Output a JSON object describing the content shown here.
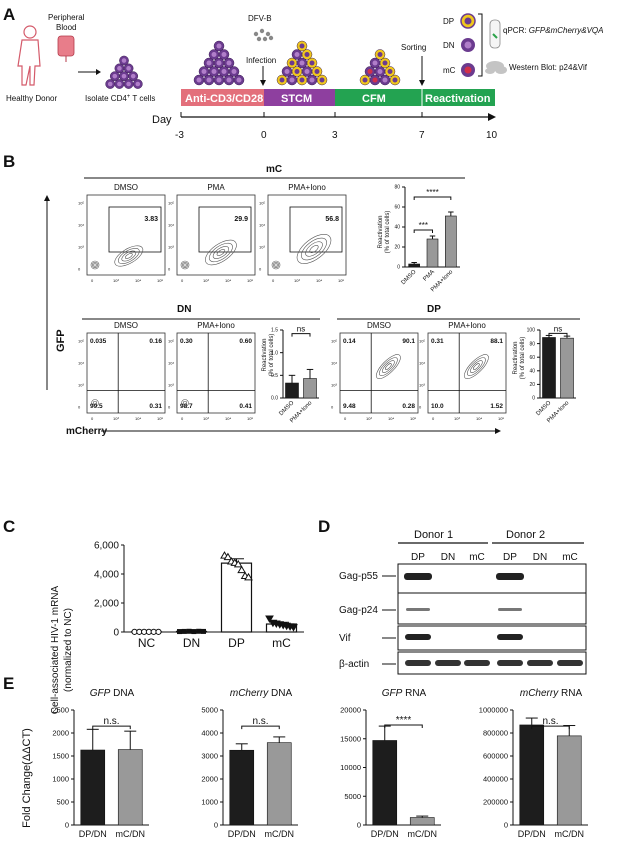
{
  "panelA": {
    "letter": "A",
    "peripheral": "Peripheral",
    "blood": "Blood",
    "donor": "Healthy Donor",
    "isolate": "Isolate CD4",
    "isolate_sup": "+",
    "isolate_tail": " T cells",
    "dfvb": "DFV-B",
    "infection": "Infection",
    "sorting": "Sorting",
    "stages": [
      {
        "label": "Anti-CD3/CD28",
        "color": "#e36f7b"
      },
      {
        "label": "STCM",
        "color": "#8e3f9f"
      },
      {
        "label": "CFM",
        "color": "#23a351"
      },
      {
        "label": "Reactivation",
        "color": "#23a351"
      }
    ],
    "day_label": "Day",
    "days": [
      "-3",
      "0",
      "3",
      "7",
      "10"
    ],
    "dp": "DP",
    "dn": "DN",
    "mc": "mC",
    "qpcr_prefix": "qPCR: ",
    "qpcr_genes": "GFP&mCherry&VQA",
    "wb": "Western Blot: p24&Vif",
    "cell_colors": {
      "purple": "#6b3b8f",
      "yellow": "#f0c81c",
      "red": "#d2304a"
    }
  },
  "panelB": {
    "letter": "B",
    "mc_title": "mC",
    "dn_title": "DN",
    "dp_title": "DP",
    "gfp": "GFP",
    "mcherry": "mCherry",
    "mc_plots": [
      {
        "label": "DMSO",
        "value": "3.83"
      },
      {
        "label": "PMA",
        "value": "29.9"
      },
      {
        "label": "PMA+Iono",
        "value": "56.8"
      }
    ],
    "dn_plots": [
      {
        "label": "DMSO",
        "q": [
          "0.035",
          "0.16",
          "99.5",
          "0.31"
        ]
      },
      {
        "label": "PMA+Iono",
        "q": [
          "0.30",
          "0.60",
          "98.7",
          "0.41"
        ]
      }
    ],
    "dp_plots": [
      {
        "label": "DMSO",
        "q": [
          "0.14",
          "90.1",
          "9.48",
          "0.28"
        ]
      },
      {
        "label": "PMA+Iono",
        "q": [
          "0.31",
          "88.1",
          "10.0",
          "1.52"
        ]
      }
    ],
    "bar_ylabel1": "Reactivation",
    "bar_ylabel2": "(% of total cells)",
    "sig3": "***",
    "sig4": "****",
    "ns": "ns",
    "ticks_mc": [
      "0",
      "20",
      "40",
      "60",
      "80"
    ],
    "ticks_dn": [
      "0.0",
      "0.5",
      "1.0",
      "1.5"
    ],
    "ticks_dp": [
      "0",
      "20",
      "40",
      "60",
      "80",
      "100"
    ],
    "contour_ticks_y": [
      "10⁵",
      "10⁴",
      "10³",
      "0"
    ],
    "contour_ticks_x": [
      "0",
      "10³",
      "10⁴",
      "10⁵"
    ],
    "bar_colors": {
      "dark": "#1d1d1d",
      "light": "#999999"
    }
  },
  "chart_data": [
    {
      "type": "bar",
      "panel": "B-mC",
      "categories": [
        "DMSO",
        "PMA",
        "PMA+Iono"
      ],
      "values": [
        3,
        28,
        51
      ],
      "errors": [
        1.5,
        3,
        4
      ],
      "ylabel": "Reactivation (% of total cells)",
      "ylim": [
        0,
        80
      ]
    },
    {
      "type": "bar",
      "panel": "B-DN",
      "categories": [
        "DMSO",
        "PMA+Iono"
      ],
      "values": [
        0.33,
        0.43
      ],
      "errors": [
        0.17,
        0.2
      ],
      "ylabel": "Reactivation (% of total cells)",
      "ylim": [
        0,
        1.5
      ]
    },
    {
      "type": "bar",
      "panel": "B-DP",
      "categories": [
        "DMSO",
        "PMA+Iono"
      ],
      "values": [
        89,
        88
      ],
      "errors": [
        3,
        3
      ],
      "ylabel": "Reactivation (% of total cells)",
      "ylim": [
        0,
        100
      ]
    },
    {
      "type": "bar",
      "panel": "C",
      "categories": [
        "NC",
        "DN",
        "DP",
        "mC"
      ],
      "values": [
        10,
        40,
        4750,
        550
      ],
      "errors": [
        5,
        15,
        300,
        120
      ],
      "ylabel": "Cell-associated HIV-1 mRNA (normalized to NC)",
      "ylim": [
        0,
        6000
      ],
      "points": [
        [
          10,
          10,
          10,
          10,
          10,
          10
        ],
        [
          30,
          40,
          50,
          30,
          50,
          40
        ],
        [
          5300,
          5200,
          4900,
          4800,
          4700,
          4300,
          3900,
          3800
        ],
        [
          900,
          600,
          550,
          500,
          450,
          400,
          350,
          300
        ]
      ]
    },
    {
      "type": "bar",
      "panel": "E-GFP DNA",
      "categories": [
        "DP/DN",
        "mC/DN"
      ],
      "values": [
        1630,
        1640
      ],
      "errors": [
        450,
        400
      ],
      "ylabel": "Fold Change(ΔΔCT)",
      "ylim": [
        0,
        2500
      ]
    },
    {
      "type": "bar",
      "panel": "E-mCherry DNA",
      "categories": [
        "DP/DN",
        "mC/DN"
      ],
      "values": [
        3250,
        3580
      ],
      "errors": [
        280,
        250
      ],
      "ylim": [
        0,
        5000
      ]
    },
    {
      "type": "bar",
      "panel": "E-GFP RNA",
      "categories": [
        "DP/DN",
        "mC/DN"
      ],
      "values": [
        14700,
        1300
      ],
      "errors": [
        2500,
        250
      ],
      "ylim": [
        0,
        20000
      ]
    },
    {
      "type": "bar",
      "panel": "E-mCherry RNA",
      "categories": [
        "DP/DN",
        "mC/DN"
      ],
      "values": [
        870000,
        775000
      ],
      "errors": [
        60000,
        90000
      ],
      "ylim": [
        0,
        1000000
      ]
    }
  ],
  "panelC": {
    "letter": "C",
    "ylabel1": "Cell-associated HIV-1 mRNA",
    "ylabel2": "(normalized to NC)",
    "yticks": [
      "0",
      "2,000",
      "4,000",
      "6,000"
    ],
    "categories": [
      "NC",
      "DN",
      "DP",
      "mC"
    ]
  },
  "panelD": {
    "letter": "D",
    "donor1": "Donor 1",
    "donor2": "Donor 2",
    "lanes": [
      "DP",
      "DN",
      "mC",
      "DP",
      "DN",
      "mC"
    ],
    "rows": [
      "Gag-p55",
      "Gag-p24",
      "Vif",
      "β-actin"
    ]
  },
  "panelE": {
    "letter": "E",
    "ylabel": "Fold Change(ΔΔCT)",
    "charts": [
      {
        "gene": "GFP",
        "kind": " DNA",
        "yticks": [
          "0",
          "500",
          "1000",
          "1500",
          "2000",
          "2500"
        ],
        "sig": "n.s."
      },
      {
        "gene": "mCherry",
        "kind": " DNA",
        "yticks": [
          "0",
          "1000",
          "2000",
          "3000",
          "4000",
          "5000"
        ],
        "sig": "n.s."
      },
      {
        "gene": "GFP",
        "kind": " RNA",
        "yticks": [
          "0",
          "5000",
          "10000",
          "15000",
          "20000"
        ],
        "sig": "****"
      },
      {
        "gene": "mCherry",
        "kind": " RNA",
        "yticks": [
          "0",
          "200000",
          "400000",
          "600000",
          "800000",
          "1000000"
        ],
        "sig": "n.s."
      }
    ],
    "categories": [
      "DP/DN",
      "mC/DN"
    ]
  }
}
